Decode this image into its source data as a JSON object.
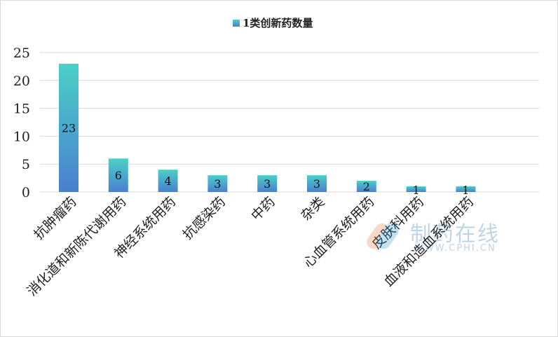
{
  "chart_data": {
    "type": "bar",
    "legend": "1类创新药数量",
    "legend_position": "top-center",
    "categories": [
      "抗肿瘤药",
      "消化道和新陈代谢用药",
      "神经系统用药",
      "抗感染药",
      "中药",
      "杂类",
      "心血管系统用药",
      "皮肤科用药",
      "血液和造血系统用药"
    ],
    "values": [
      23,
      6,
      4,
      3,
      3,
      3,
      2,
      1,
      1
    ],
    "ylim": [
      0,
      25
    ],
    "yticks": [
      0,
      5,
      10,
      15,
      20,
      25
    ],
    "grid": true,
    "data_labels": true,
    "bar_gradient": [
      "#4ad0c6",
      "#4a7fd0"
    ]
  },
  "watermark": {
    "text": "制药在线",
    "url": "WWW.CPHI.CN"
  }
}
